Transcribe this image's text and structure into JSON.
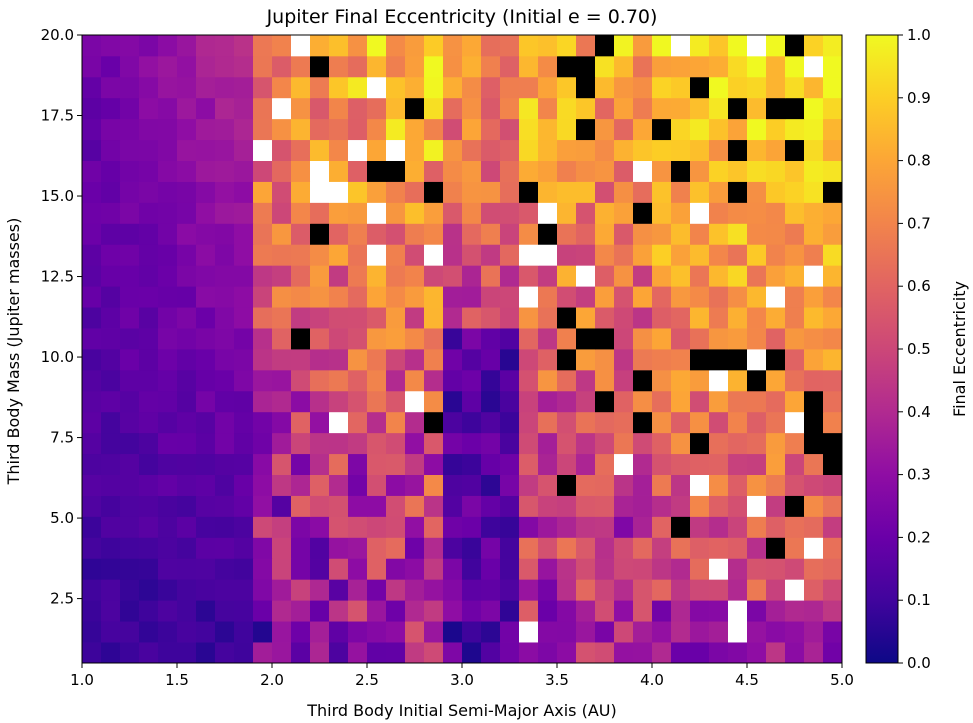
{
  "chart_data": {
    "type": "heatmap",
    "title": "Jupiter Final Eccentricity (Initial e = 0.70)",
    "xlabel": "Third Body Initial Semi-Major Axis (AU)",
    "ylabel": "Third Body Mass (Jupiter masses)",
    "colorbar_label": "Final Eccentricity",
    "colormap": "plasma",
    "xlim": [
      1.0,
      5.0
    ],
    "ylim": [
      0.5,
      20.0
    ],
    "x_ticks": [
      1.0,
      1.5,
      2.0,
      2.5,
      3.0,
      3.5,
      4.0,
      4.5,
      5.0
    ],
    "x_tick_labels": [
      "1.0",
      "1.5",
      "2.0",
      "2.5",
      "3.0",
      "3.5",
      "4.0",
      "4.5",
      "5.0"
    ],
    "y_ticks": [
      2.5,
      5.0,
      7.5,
      10.0,
      12.5,
      15.0,
      17.5,
      20.0
    ],
    "y_tick_labels": [
      "2.5",
      "5.0",
      "7.5",
      "10.0",
      "12.5",
      "15.0",
      "17.5",
      "20.0"
    ],
    "colorbar_ticks": [
      0.0,
      0.1,
      0.2,
      0.3,
      0.4,
      0.5,
      0.6,
      0.7,
      0.8,
      0.9,
      1.0
    ],
    "colorbar_tick_labels": [
      "0.0",
      "0.1",
      "0.2",
      "0.3",
      "0.4",
      "0.5",
      "0.6",
      "0.7",
      "0.8",
      "0.9",
      "1.0"
    ],
    "vmin": 0.0,
    "vmax": 1.0,
    "x_bins": 40,
    "y_bins": 30,
    "value_note_black_cells": "ejected / unbound (rendered black)",
    "rows_low_mass_to_high_mass_regions": [
      {
        "a_range": [
          1.0,
          1.9
        ],
        "typical_e": 0.1,
        "high_mass_typical_e": 0.3
      },
      {
        "a_range": [
          1.9,
          2.9
        ],
        "typical_e": 0.55
      },
      {
        "a_range": [
          2.9,
          3.3
        ],
        "typical_e": 0.25
      },
      {
        "a_range": [
          3.3,
          4.0
        ],
        "typical_e": 0.7
      },
      {
        "a_range": [
          4.0,
          5.0
        ],
        "typical_e": 0.85
      }
    ]
  }
}
